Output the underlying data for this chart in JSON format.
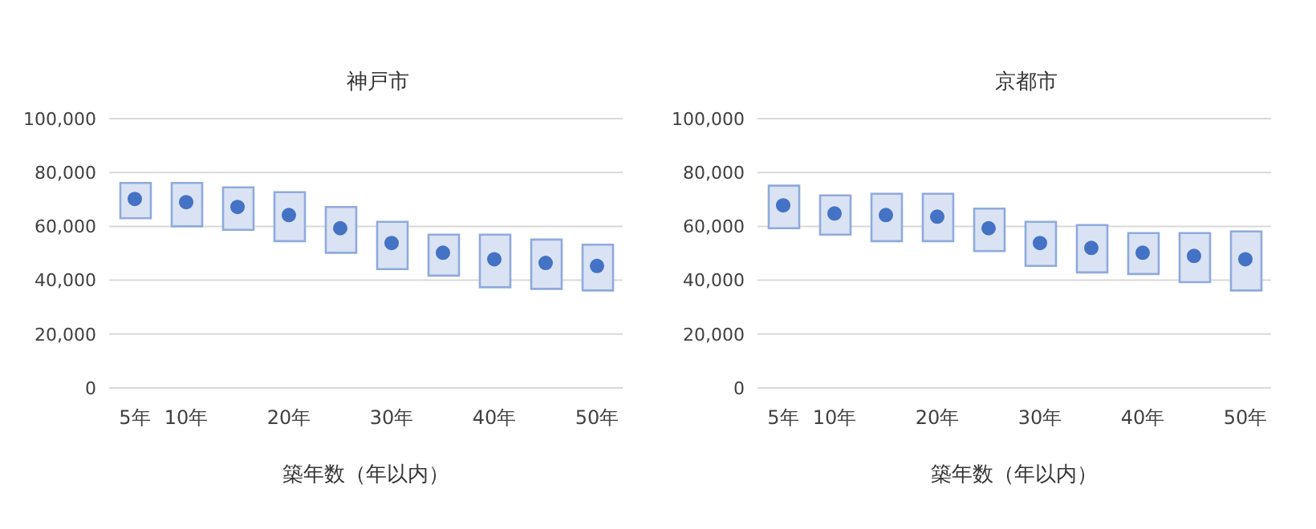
{
  "chart_data": [
    {
      "type": "bar",
      "title": "神戸市",
      "xlabel": "築年数（年以内）",
      "categories": [
        "5年",
        "10年",
        null,
        "20年",
        null,
        "30年",
        null,
        "40年",
        null,
        "50年"
      ],
      "ylim": [
        0,
        100000
      ],
      "yticks": [
        {
          "value": 0,
          "label": "0"
        },
        {
          "value": 20000,
          "label": "20,000"
        },
        {
          "value": 40000,
          "label": "40,000"
        },
        {
          "value": 60000,
          "label": "60,000"
        },
        {
          "value": 80000,
          "label": "80,000"
        },
        {
          "value": 100000,
          "label": "100,000"
        }
      ],
      "grid": "y",
      "series": [
        {
          "color": "#dae3f3",
          "base": [
            63000,
            60000,
            58700,
            54500,
            50200,
            44100,
            41700,
            37400,
            36800,
            36200
          ],
          "values": [
            13100,
            16100,
            15800,
            18200,
            17000,
            17600,
            15200,
            19500,
            18300,
            17000
          ]
        },
        {
          "type": "scatter",
          "color": "#4472c4",
          "marker": "circle",
          "values": [
            70200,
            69000,
            67200,
            64200,
            59300,
            53800,
            50200,
            47800,
            46400,
            45300
          ]
        }
      ]
    },
    {
      "type": "bar",
      "title": "京都市",
      "xlabel": "築年数（年以内）",
      "categories": [
        "5年",
        "10年",
        null,
        "20年",
        null,
        "30年",
        null,
        "40年",
        null,
        "50年"
      ],
      "ylim": [
        0,
        100000
      ],
      "yticks": [
        {
          "value": 0,
          "label": "0"
        },
        {
          "value": 20000,
          "label": "20,000"
        },
        {
          "value": 40000,
          "label": "40,000"
        },
        {
          "value": 60000,
          "label": "60,000"
        },
        {
          "value": 80000,
          "label": "80,000"
        },
        {
          "value": 100000,
          "label": "100,000"
        }
      ],
      "grid": "y",
      "series": [
        {
          "color": "#dae3f3",
          "base": [
            59300,
            56900,
            54500,
            54500,
            50800,
            45300,
            42900,
            42300,
            39300,
            36200
          ],
          "values": [
            15800,
            14600,
            17600,
            17600,
            15800,
            16400,
            17600,
            15200,
            18200,
            21900
          ]
        },
        {
          "type": "scatter",
          "color": "#4472c4",
          "marker": "circle",
          "values": [
            67800,
            64800,
            64200,
            63600,
            59300,
            53800,
            52000,
            50200,
            49000,
            47800
          ]
        }
      ]
    }
  ]
}
